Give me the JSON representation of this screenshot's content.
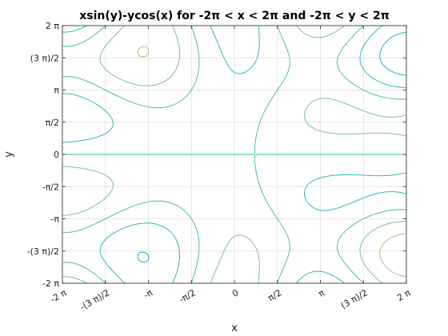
{
  "chart_data": {
    "type": "contour",
    "title": "xsin(y)-ycos(x) for -2π < x < 2π and -2π < y < 2π",
    "xlabel": "x",
    "ylabel": "y",
    "function": "x*sin(y) - y*cos(x)",
    "xlim": [
      -6.283185307,
      6.283185307
    ],
    "ylim": [
      -6.283185307,
      6.283185307
    ],
    "grid": true,
    "colormap": "parula",
    "levels": [
      -28,
      -24,
      -20,
      -16,
      -12,
      -8,
      -4,
      0,
      4,
      8,
      12,
      16,
      20,
      24,
      28
    ],
    "xticks": [
      {
        "value": -6.283185307,
        "label": "-2 π"
      },
      {
        "value": -4.71238898,
        "label": "-(3 π)/2"
      },
      {
        "value": -3.141592654,
        "label": "-π"
      },
      {
        "value": -1.570796327,
        "label": "-π/2"
      },
      {
        "value": 0,
        "label": "0"
      },
      {
        "value": 1.570796327,
        "label": "π/2"
      },
      {
        "value": 3.141592654,
        "label": "π"
      },
      {
        "value": 4.71238898,
        "label": "(3 π)/2"
      },
      {
        "value": 6.283185307,
        "label": "2 π"
      }
    ],
    "yticks": [
      {
        "value": -6.283185307,
        "label": "-2 π"
      },
      {
        "value": -4.71238898,
        "label": "-(3 π)/2"
      },
      {
        "value": -3.141592654,
        "label": "-π"
      },
      {
        "value": -1.570796327,
        "label": "-π/2"
      },
      {
        "value": 0,
        "label": "0"
      },
      {
        "value": 1.570796327,
        "label": "π/2"
      },
      {
        "value": 3.141592654,
        "label": "π"
      },
      {
        "value": 4.71238898,
        "label": "(3 π)/2"
      },
      {
        "value": 6.283185307,
        "label": "2 π"
      }
    ]
  }
}
